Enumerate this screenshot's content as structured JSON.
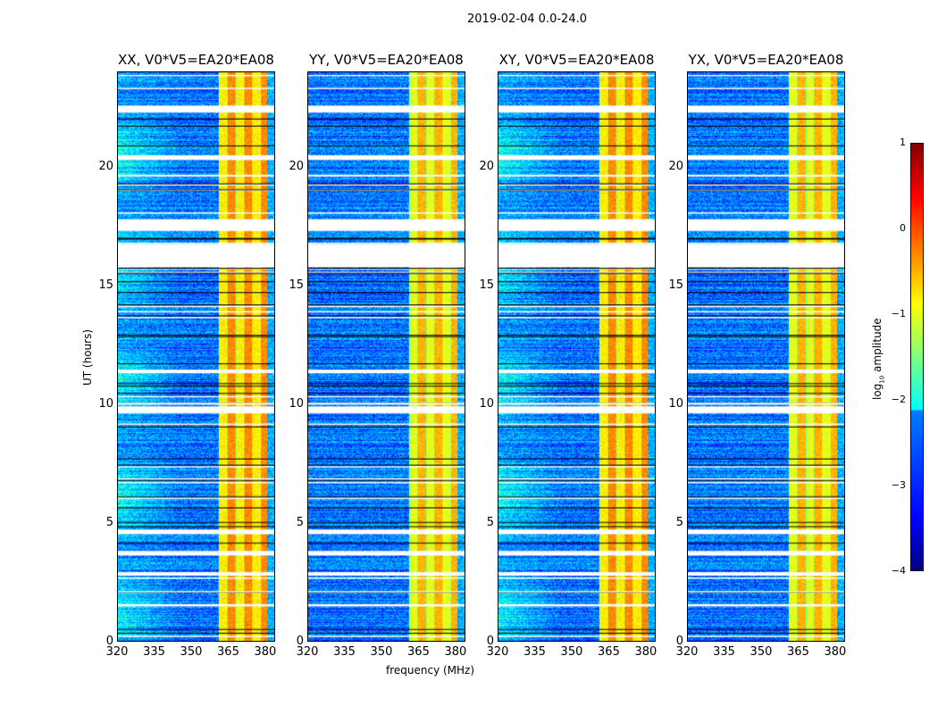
{
  "chart_data": {
    "type": "heatmap",
    "title": "2019-02-04 0.0-24.0",
    "xlabel": "frequency (MHz)",
    "ylabel": "UT (hours)",
    "xlim": [
      320,
      384
    ],
    "ylim": [
      0,
      24
    ],
    "xticks": [
      "320",
      "335",
      "350",
      "365",
      "380"
    ],
    "yticks": [
      "0",
      "5",
      "10",
      "15",
      "20"
    ],
    "panels": [
      {
        "title": "XX, V0*V5=EA20*EA08",
        "left_excess": true
      },
      {
        "title": "YY, V0*V5=EA20*EA08",
        "left_excess": false
      },
      {
        "title": "XY, V0*V5=EA20*EA08",
        "left_excess": true
      },
      {
        "title": "YX, V0*V5=EA20*EA08",
        "left_excess": false
      }
    ],
    "bright_band_mhz": [
      361,
      381
    ],
    "background_log_amplitude": -2.8,
    "band_log_amplitude": -0.6,
    "flagged_intervals_hours": [
      [
        15.77,
        16.74
      ],
      [
        17.3,
        17.8
      ],
      [
        9.6,
        9.9
      ],
      [
        4.5,
        4.7
      ],
      [
        2.75,
        2.9
      ],
      [
        20.3,
        20.5
      ],
      [
        22.3,
        22.6
      ],
      [
        11.3,
        11.45
      ],
      [
        3.6,
        3.75
      ],
      [
        1.45,
        1.55
      ]
    ],
    "colorbar": {
      "label": "log10 amplitude",
      "label_main": "log",
      "label_sub": "10",
      "label_rest": " amplitude",
      "range": [
        -4,
        1
      ],
      "ticks": [
        "1",
        "0",
        "−1",
        "−2",
        "−3",
        "−4"
      ],
      "colormap": "jet"
    }
  }
}
